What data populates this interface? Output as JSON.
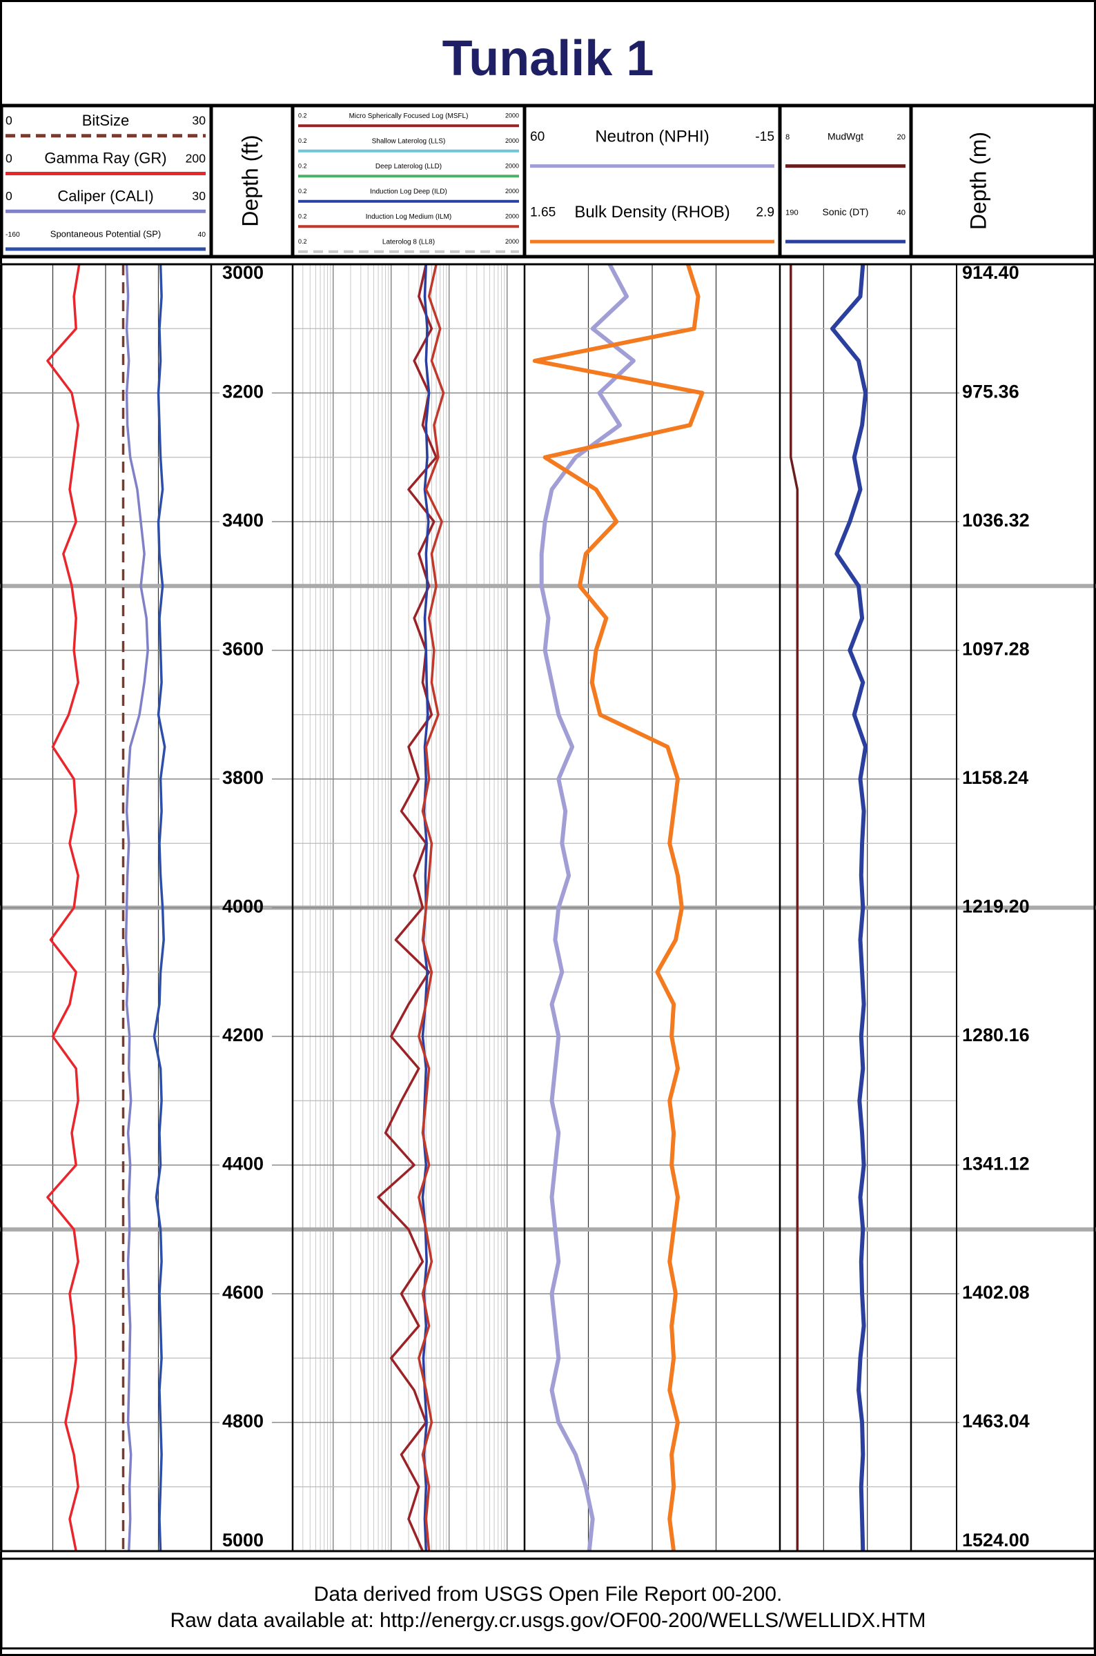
{
  "title": "Tunalik 1",
  "footer": [
    "Data derived from USGS Open File Report 00-200.",
    "Raw data available at: http://energy.cr.usgs.gov/OF00-200/WELLS/WELLIDX.HTM"
  ],
  "chart_data": {
    "type": "well-log",
    "depth_ft_label": "Depth (ft)",
    "depth_m_label": "Depth (m)",
    "ylim": [
      3000,
      5000
    ],
    "yticks": [
      3000,
      3200,
      3400,
      3600,
      3800,
      4000,
      4200,
      4400,
      4600,
      4800,
      5000
    ],
    "y2lim": [
      914.4,
      1524
    ],
    "y2ticks": [
      {
        "value": 914.4,
        "label": "914.40"
      },
      {
        "value": 975.36,
        "label": "975.36"
      },
      {
        "value": 1036.32,
        "label": "1036.32"
      },
      {
        "value": 1097.28,
        "label": "1097.28"
      },
      {
        "value": 1158.24,
        "label": "1158.24"
      },
      {
        "value": 1219.2,
        "label": "1219.20"
      },
      {
        "value": 1280.16,
        "label": "1280.16"
      },
      {
        "value": 1341.12,
        "label": "1341.12"
      },
      {
        "value": 1402.08,
        "label": "1402.08"
      },
      {
        "value": 1463.04,
        "label": "1463.04"
      },
      {
        "value": 1524,
        "label": "1524.00"
      }
    ],
    "x": [
      3000,
      3050,
      3100,
      3150,
      3200,
      3250,
      3300,
      3350,
      3400,
      3450,
      3500,
      3550,
      3600,
      3650,
      3700,
      3750,
      3800,
      3850,
      3900,
      3950,
      4000,
      4050,
      4100,
      4150,
      4200,
      4250,
      4300,
      4350,
      4400,
      4450,
      4500,
      4550,
      4600,
      4650,
      4700,
      4750,
      4800,
      4850,
      4900,
      4950,
      5000
    ],
    "tracks": [
      {
        "series": [
          {
            "name": "BitSize",
            "color": "#7a3b2e",
            "dashed": true,
            "xlim": [
              0,
              30
            ],
            "values": [
              17.5,
              17.5,
              17.5,
              17.5,
              17.5,
              17.5,
              17.5,
              17.5,
              17.5,
              17.5,
              17.5,
              17.5,
              17.5,
              17.5,
              17.5,
              17.5,
              17.5,
              17.5,
              17.5,
              17.5,
              17.5,
              17.5,
              17.5,
              17.5,
              17.5,
              17.5,
              17.5,
              17.5,
              17.5,
              17.5,
              17.5,
              17.5,
              17.5,
              17.5,
              17.5,
              17.5,
              17.5,
              17.5,
              17.5,
              17.5,
              17.5
            ]
          },
          {
            "name": "Gamma Ray (GR)",
            "color": "#e8262b",
            "xlim": [
              0,
              200
            ],
            "values": [
              75,
              70,
              72,
              45,
              68,
              74,
              70,
              66,
              72,
              60,
              68,
              72,
              70,
              74,
              65,
              50,
              70,
              72,
              66,
              74,
              70,
              48,
              72,
              66,
              50,
              72,
              74,
              68,
              72,
              45,
              70,
              74,
              66,
              70,
              72,
              68,
              62,
              70,
              74,
              66,
              72
            ]
          },
          {
            "name": "Caliper (CALI)",
            "color": "#8080c8",
            "xlim": [
              0,
              30
            ],
            "values": [
              18,
              18.2,
              18,
              18.3,
              18,
              18.1,
              18.5,
              19.5,
              20,
              20.5,
              20,
              20.8,
              21,
              20.5,
              19.8,
              18.5,
              18.2,
              18,
              18.3,
              18.1,
              18,
              17.9,
              18.2,
              18,
              18.4,
              18.3,
              18.6,
              18.2,
              18.5,
              18.3,
              18.4,
              18.2,
              18.3,
              18.5,
              18.4,
              18.3,
              18.2,
              18.6,
              18.4,
              18.5,
              18.3
            ]
          },
          {
            "name": "Spontaneous Potential (SP)",
            "color": "#2e4fa8",
            "xlim": [
              -160,
              40
            ],
            "values": [
              -8,
              -7,
              -9,
              -8,
              -10,
              -9,
              -8,
              -6,
              -10,
              -9,
              -6,
              -9,
              -8,
              -7,
              -10,
              -4,
              -8,
              -7,
              -9,
              -8,
              -6,
              -5,
              -8,
              -9,
              -14,
              -8,
              -7,
              -9,
              -8,
              -12,
              -8,
              -7,
              -9,
              -8,
              -7,
              -9,
              -8,
              -7,
              -8,
              -9,
              -8
            ]
          }
        ]
      },
      {
        "log": true,
        "series": [
          {
            "name": "Micro Spherically Focused Log (MSFL)",
            "color": "#9b2226",
            "xlim": [
              0.2,
              2000
            ],
            "values": [
              40,
              30,
              50,
              25,
              45,
              35,
              60,
              20,
              55,
              30,
              45,
              25,
              40,
              35,
              50,
              20,
              30,
              15,
              40,
              25,
              35,
              12,
              45,
              20,
              10,
              30,
              15,
              8,
              25,
              6,
              20,
              35,
              15,
              30,
              10,
              25,
              40,
              15,
              30,
              20,
              35
            ]
          },
          {
            "name": "Shallow Laterolog (LLS)",
            "color": "#6cc5d8",
            "xlim": [
              0.2,
              2000
            ]
          },
          {
            "name": "Deep Laterolog (LLD)",
            "color": "#4caf6a",
            "xlim": [
              0.2,
              2000
            ]
          },
          {
            "name": "Induction Log Deep (ILD)",
            "color": "#2a3f9e",
            "xlim": [
              0.2,
              2000
            ],
            "values": [
              40,
              38,
              42,
              40,
              45,
              40,
              42,
              38,
              44,
              40,
              42,
              38,
              40,
              41,
              43,
              38,
              40,
              37,
              41,
              39,
              40,
              36,
              42,
              39,
              35,
              40,
              38,
              36,
              40,
              35,
              39,
              41,
              37,
              40,
              36,
              38,
              41,
              37,
              40,
              38,
              40
            ]
          },
          {
            "name": "Induction Log Medium (ILM)",
            "color": "#c0392b",
            "xlim": [
              0.2,
              2000
            ],
            "values": [
              60,
              45,
              70,
              50,
              80,
              55,
              65,
              40,
              75,
              50,
              60,
              45,
              55,
              50,
              65,
              40,
              45,
              35,
              50,
              45,
              40,
              35,
              50,
              40,
              30,
              45,
              40,
              35,
              45,
              30,
              40,
              50,
              35,
              45,
              30,
              40,
              50,
              35,
              45,
              40,
              45
            ]
          },
          {
            "name": "Laterolog 8 (LL8)",
            "color": "#c8c8c8",
            "dashed": true,
            "xlim": [
              0.2,
              2000
            ]
          }
        ]
      },
      {
        "series": [
          {
            "name": "Neutron (NPHI)",
            "color": "#a09ed4",
            "xlim": [
              60,
              -15
            ],
            "values": [
              35,
              30,
              40,
              28,
              38,
              32,
              45,
              52,
              54,
              55,
              55,
              53,
              54,
              52,
              50,
              46,
              50,
              48,
              49,
              47,
              50,
              51,
              49,
              52,
              50,
              51,
              52,
              50,
              51,
              52,
              51,
              50,
              52,
              51,
              50,
              52,
              50,
              45,
              42,
              40,
              41
            ]
          },
          {
            "name": "Bulk Density (RHOB)",
            "color": "#f47a20",
            "xlim": [
              1.65,
              2.9
            ],
            "values": [
              2.45,
              2.5,
              2.48,
              1.7,
              2.52,
              2.46,
              1.75,
              2,
              2.1,
              1.95,
              1.92,
              2.05,
              2,
              1.98,
              2.02,
              2.35,
              2.4,
              2.38,
              2.36,
              2.4,
              2.42,
              2.39,
              2.3,
              2.38,
              2.37,
              2.4,
              2.36,
              2.38,
              2.37,
              2.4,
              2.38,
              2.36,
              2.39,
              2.37,
              2.38,
              2.36,
              2.4,
              2.37,
              2.38,
              2.36,
              2.38
            ]
          }
        ]
      },
      {
        "series": [
          {
            "name": "MudWgt",
            "color": "#6b1e1e",
            "xlim": [
              8,
              20
            ],
            "values": [
              9,
              9,
              9,
              9,
              9,
              9,
              9,
              9.6,
              9.6,
              9.6,
              9.6,
              9.6,
              9.6,
              9.6,
              9.6,
              9.6,
              9.6,
              9.6,
              9.6,
              9.6,
              9.6,
              9.6,
              9.6,
              9.6,
              9.6,
              9.6,
              9.6,
              9.6,
              9.6,
              9.6,
              9.6,
              9.6,
              9.6,
              9.6,
              9.6,
              9.6,
              9.6,
              9.6,
              9.6,
              9.6,
              9.6
            ]
          },
          {
            "name": "Sonic (DT)",
            "color": "#2a3f9e",
            "xlim": [
              190,
              40
            ],
            "values": [
              95,
              98,
              130,
              100,
              92,
              96,
              105,
              98,
              110,
              125,
              100,
              96,
              110,
              95,
              105,
              92,
              98,
              94,
              96,
              97,
              95,
              98,
              96,
              94,
              97,
              95,
              99,
              96,
              94,
              98,
              95,
              97,
              96,
              94,
              98,
              100,
              96,
              95,
              97,
              96,
              95
            ]
          }
        ]
      }
    ]
  }
}
